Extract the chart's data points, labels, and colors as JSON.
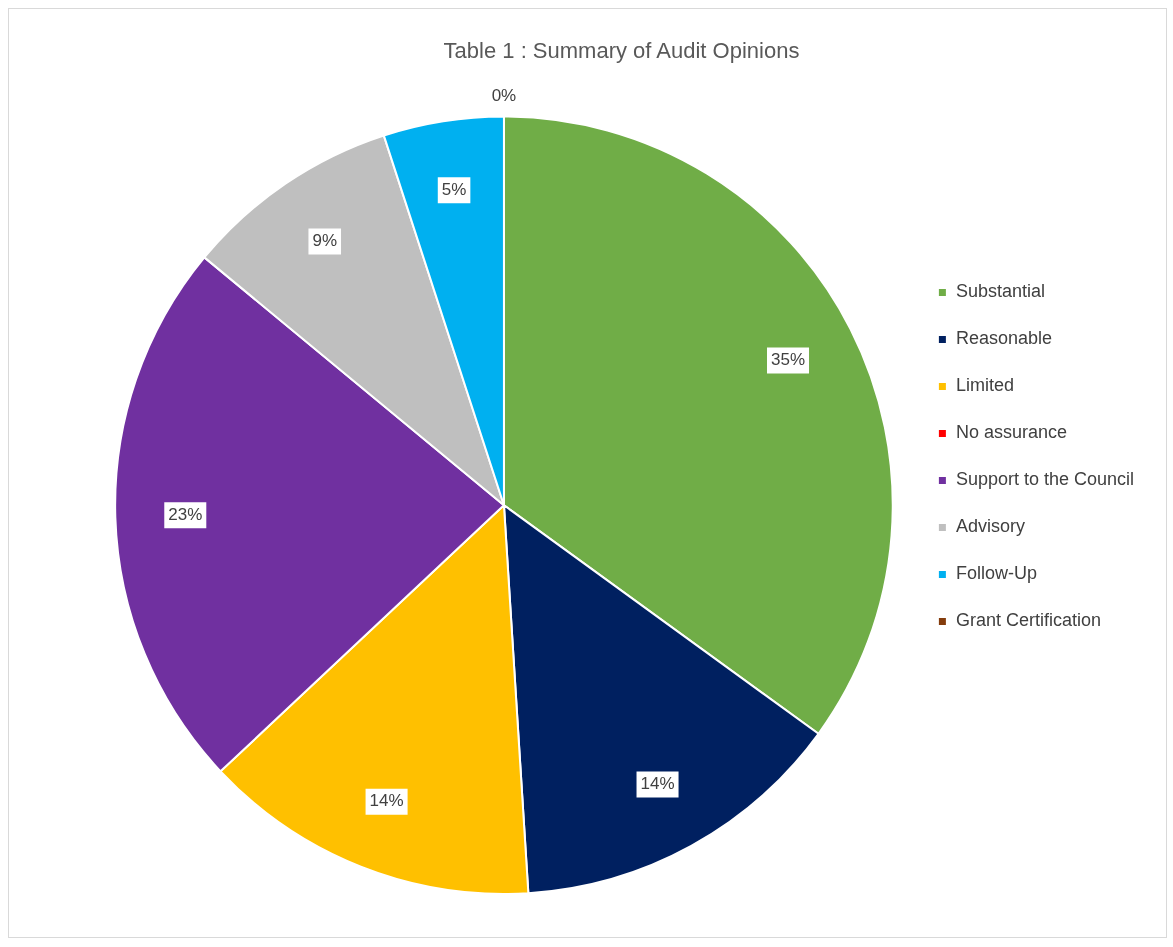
{
  "chart_data": {
    "type": "pie",
    "title": "Table 1 : Summary of Audit Opinions",
    "categories": [
      "Substantial",
      "Reasonable",
      "Limited",
      "No assurance",
      "Support to the Council",
      "Advisory",
      "Follow-Up",
      "Grant Certification"
    ],
    "values": [
      35,
      14,
      14,
      0,
      23,
      9,
      5,
      0
    ],
    "colors": [
      "#70ad47",
      "#002060",
      "#ffc000",
      "#ff0000",
      "#7030a0",
      "#bfbfbf",
      "#00b0f0",
      "#843c0c"
    ],
    "value_labels": [
      "35%",
      "14%",
      "14%",
      null,
      "23%",
      "9%",
      "5%",
      "0%"
    ],
    "legend": "right"
  }
}
